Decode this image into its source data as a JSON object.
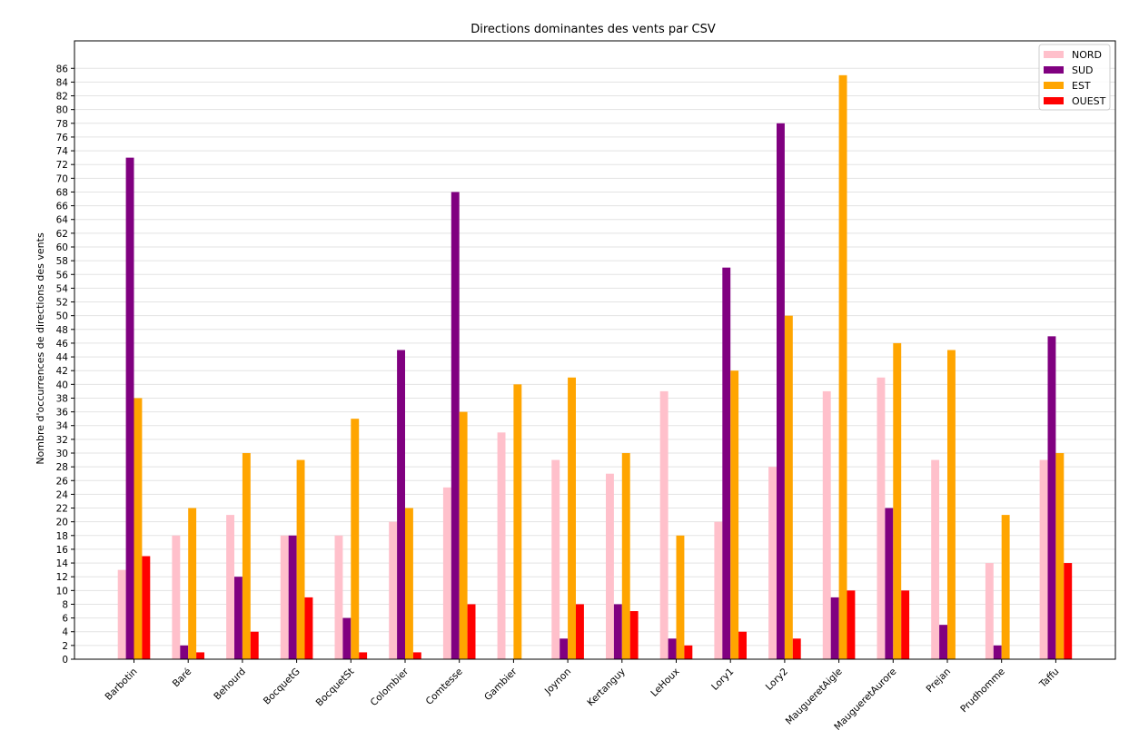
{
  "chart_data": {
    "type": "bar",
    "title": "Directions dominantes des vents par CSV",
    "xlabel": "",
    "ylabel": "Nombre d'occurrences de directions des vents",
    "ylim": [
      0,
      90
    ],
    "yticks": [
      0,
      2,
      4,
      6,
      8,
      10,
      12,
      14,
      16,
      18,
      20,
      22,
      24,
      26,
      28,
      30,
      32,
      34,
      36,
      38,
      40,
      42,
      44,
      46,
      48,
      50,
      52,
      54,
      56,
      58,
      60,
      62,
      64,
      66,
      68,
      70,
      72,
      74,
      76,
      78,
      80,
      82,
      84,
      86
    ],
    "grid": "horizontal",
    "legend_position": "top-right",
    "categories": [
      "Barbotin",
      "Baré",
      "Behourd",
      "BocquetG",
      "BocquetSt",
      "Colombier",
      "Comtesse",
      "Gambier",
      "Joynon",
      "Kertanguy",
      "LeHoux",
      "Lory1",
      "Lory2",
      "MaugueretAigle",
      "MaugueretAurore",
      "Prejan",
      "Prudhomme",
      "Taffu"
    ],
    "series": [
      {
        "name": "NORD",
        "color": "#ffc0cb",
        "values": [
          13,
          18,
          21,
          18,
          18,
          20,
          25,
          33,
          29,
          27,
          39,
          20,
          28,
          39,
          41,
          29,
          14,
          29
        ]
      },
      {
        "name": "SUD",
        "color": "#800080",
        "values": [
          73,
          2,
          12,
          18,
          6,
          45,
          68,
          0,
          3,
          8,
          3,
          57,
          78,
          9,
          22,
          5,
          2,
          47
        ]
      },
      {
        "name": "EST",
        "color": "#ffa500",
        "values": [
          38,
          22,
          30,
          29,
          35,
          22,
          36,
          40,
          41,
          30,
          18,
          42,
          50,
          85,
          46,
          45,
          21,
          30
        ]
      },
      {
        "name": "OUEST",
        "color": "#ff0000",
        "values": [
          15,
          1,
          4,
          9,
          1,
          1,
          8,
          0,
          8,
          7,
          2,
          4,
          3,
          10,
          10,
          0,
          0,
          14
        ]
      }
    ]
  }
}
